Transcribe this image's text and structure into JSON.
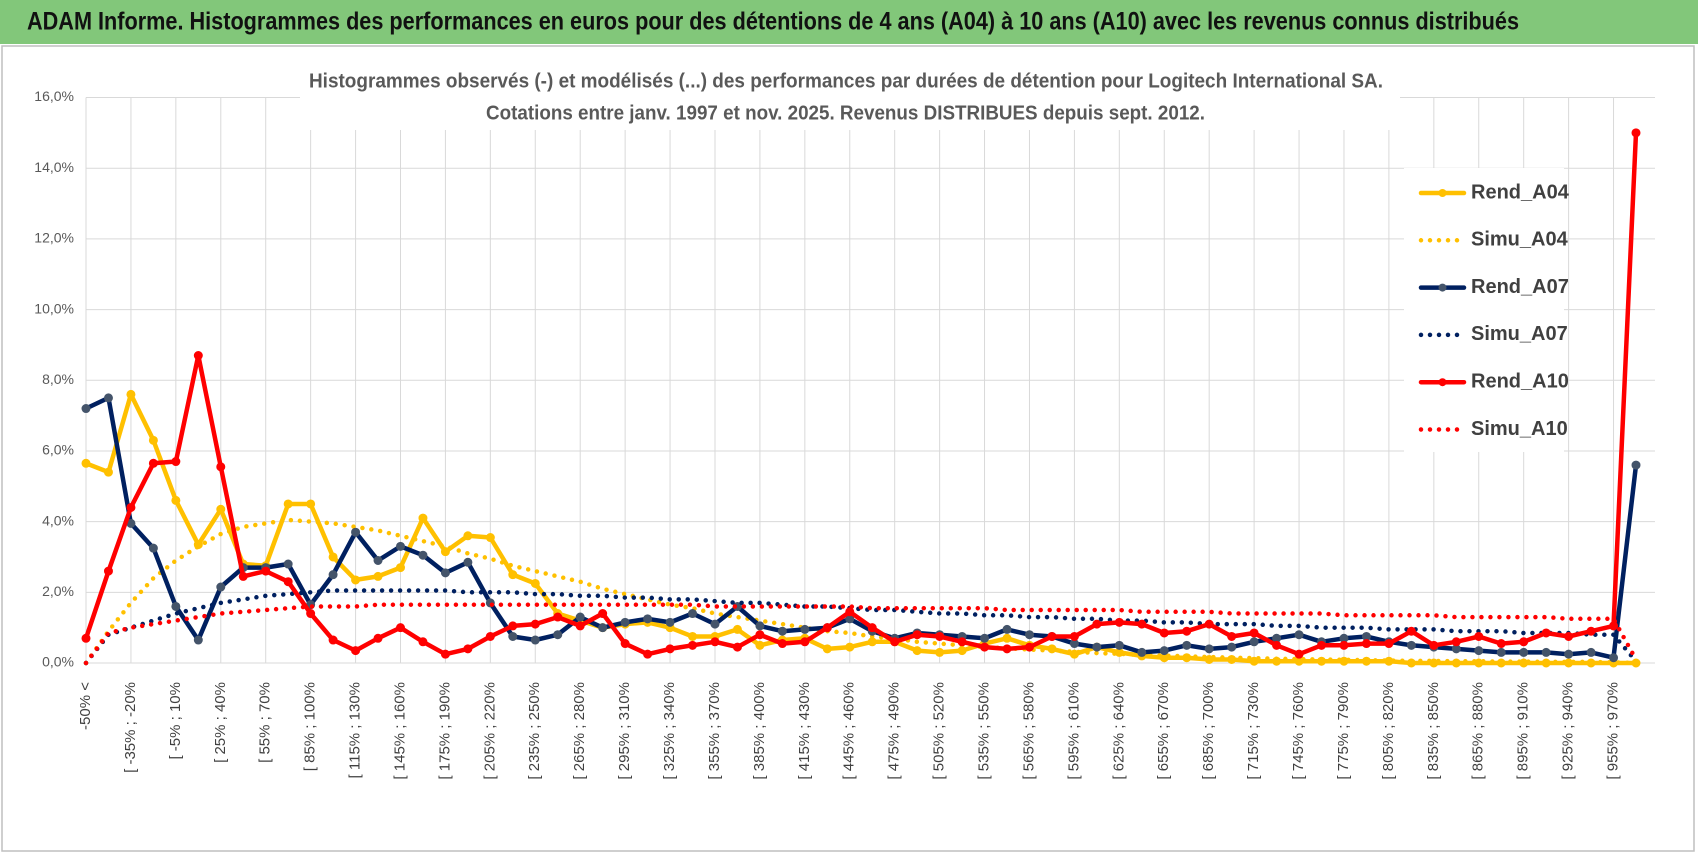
{
  "header": {
    "title": "ADAM Informe. Histogrammes des performances en euros pour des détentions de 4 ans (A04) à 10 ans (A10) avec les revenus connus distribués"
  },
  "chart_data": {
    "type": "line",
    "title": "Histogrammes observés (-) et modélisés (...) des performances par durées de détention pour Logitech International SA.",
    "subtitle": "Cotations entre janv. 1997 et nov. 2025. Revenus DISTRIBUES depuis sept. 2012.",
    "categories": [
      "-50% <",
      null,
      "[ -35% ; -20%",
      null,
      "[ -5% ; 10%",
      null,
      "[ 25% ; 40%",
      null,
      "[ 55% ; 70%",
      null,
      "[ 85% ; 100%",
      null,
      "[ 115% ; 130%",
      null,
      "[ 145% ; 160%",
      null,
      "[ 175% ; 190%",
      null,
      "[ 205% ; 220%",
      null,
      "[ 235% ; 250%",
      null,
      "[ 265% ; 280%",
      null,
      "[ 295% ; 310%",
      null,
      "[ 325% ; 340%",
      null,
      "[ 355% ; 370%",
      null,
      "[ 385% ; 400%",
      null,
      "[ 415% ; 430%",
      null,
      "[ 445% ; 460%",
      null,
      "[ 475% ; 490%",
      null,
      "[ 505% ; 520%",
      null,
      "[ 535% ; 550%",
      null,
      "[ 565% ; 580%",
      null,
      "[ 595% ; 610%",
      null,
      "[ 625% ; 640%",
      null,
      "[ 655% ; 670%",
      null,
      "[ 685% ; 700%",
      null,
      "[ 715% ; 730%",
      null,
      "[ 745% ; 760%",
      null,
      "[ 775% ; 790%",
      null,
      "[ 805% ; 820%",
      null,
      "[ 835% ; 850%",
      null,
      "[ 865% ; 880%",
      null,
      "[ 895% ; 910%",
      null,
      "[ 925% ; 940%",
      null,
      "[ 955% ; 970%",
      null
    ],
    "ylim": [
      0,
      16
    ],
    "yticks": [
      {
        "value": 0,
        "label": "0,0%"
      },
      {
        "value": 2,
        "label": "2,0%"
      },
      {
        "value": 4,
        "label": "4,0%"
      },
      {
        "value": 6,
        "label": "6,0%"
      },
      {
        "value": 8,
        "label": "8,0%"
      },
      {
        "value": 10,
        "label": "10,0%"
      },
      {
        "value": 12,
        "label": "12,0%"
      },
      {
        "value": 14,
        "label": "14,0%"
      },
      {
        "value": 16,
        "label": "16,0%"
      }
    ],
    "grid": true,
    "legend": "right",
    "series": [
      {
        "name": "Rend_A04",
        "color": "#ffc000",
        "line_style": "solid",
        "marker_color": "#ffc000",
        "values": [
          5.65,
          5.4,
          7.6,
          6.3,
          4.6,
          3.35,
          4.35,
          2.8,
          2.75,
          4.5,
          4.5,
          3.0,
          2.35,
          2.45,
          2.7,
          4.1,
          3.15,
          3.6,
          3.55,
          2.5,
          2.25,
          1.4,
          1.2,
          1.0,
          1.1,
          1.15,
          1.0,
          0.75,
          0.75,
          0.95,
          0.5,
          0.65,
          0.7,
          0.4,
          0.45,
          0.6,
          0.6,
          0.35,
          0.3,
          0.35,
          0.55,
          0.7,
          0.5,
          0.4,
          0.25,
          0.45,
          0.3,
          0.2,
          0.15,
          0.15,
          0.1,
          0.1,
          0.05,
          0.05,
          0.05,
          0.05,
          0.05,
          0.05,
          0.05,
          0,
          0,
          0,
          0,
          0,
          0,
          0,
          0,
          0,
          0,
          0
        ]
      },
      {
        "name": "Simu_A04",
        "color": "#ffc000",
        "line_style": "dotted",
        "values": [
          0,
          0.9,
          1.7,
          2.4,
          2.9,
          3.3,
          3.65,
          3.85,
          3.95,
          4.05,
          4.0,
          3.95,
          3.85,
          3.75,
          3.6,
          3.45,
          3.3,
          3.1,
          2.95,
          2.75,
          2.6,
          2.45,
          2.3,
          2.1,
          1.95,
          1.8,
          1.65,
          1.55,
          1.4,
          1.3,
          1.2,
          1.1,
          1.0,
          0.9,
          0.85,
          0.75,
          0.7,
          0.6,
          0.55,
          0.5,
          0.45,
          0.42,
          0.38,
          0.35,
          0.32,
          0.28,
          0.26,
          0.23,
          0.21,
          0.19,
          0.17,
          0.15,
          0.14,
          0.12,
          0.11,
          0.1,
          0.09,
          0.08,
          0.07,
          0.06,
          0.06,
          0.05,
          0.05,
          0.04,
          0.04,
          0.03,
          0.03,
          0.03,
          0.02,
          0
        ]
      },
      {
        "name": "Rend_A07",
        "color": "#002060",
        "line_style": "solid",
        "marker_color": "#44546a",
        "values": [
          7.2,
          7.5,
          3.95,
          3.25,
          1.6,
          0.65,
          2.15,
          2.7,
          2.7,
          2.8,
          1.65,
          2.5,
          3.7,
          2.9,
          3.3,
          3.05,
          2.55,
          2.85,
          1.7,
          0.75,
          0.65,
          0.8,
          1.3,
          1.0,
          1.15,
          1.25,
          1.15,
          1.4,
          1.1,
          1.6,
          1.05,
          0.9,
          0.95,
          1.0,
          1.25,
          0.9,
          0.7,
          0.85,
          0.8,
          0.75,
          0.7,
          0.95,
          0.8,
          0.75,
          0.55,
          0.45,
          0.5,
          0.3,
          0.35,
          0.5,
          0.4,
          0.45,
          0.6,
          0.7,
          0.8,
          0.6,
          0.7,
          0.75,
          0.6,
          0.5,
          0.45,
          0.4,
          0.35,
          0.3,
          0.3,
          0.3,
          0.25,
          0.3,
          0.15,
          5.6
        ]
      },
      {
        "name": "Simu_A07",
        "color": "#002060",
        "line_style": "dotted",
        "values": [
          0,
          0.8,
          1.0,
          1.2,
          1.4,
          1.55,
          1.7,
          1.8,
          1.9,
          1.95,
          2.0,
          2.05,
          2.05,
          2.05,
          2.05,
          2.05,
          2.05,
          2.0,
          2.0,
          2.0,
          1.95,
          1.95,
          1.9,
          1.9,
          1.85,
          1.85,
          1.8,
          1.8,
          1.75,
          1.7,
          1.7,
          1.65,
          1.6,
          1.6,
          1.55,
          1.5,
          1.5,
          1.45,
          1.4,
          1.4,
          1.35,
          1.35,
          1.3,
          1.3,
          1.25,
          1.25,
          1.2,
          1.2,
          1.15,
          1.15,
          1.1,
          1.1,
          1.1,
          1.05,
          1.05,
          1.0,
          1.0,
          1.0,
          0.95,
          0.95,
          0.95,
          0.9,
          0.9,
          0.9,
          0.85,
          0.85,
          0.85,
          0.8,
          0.8,
          0.05
        ]
      },
      {
        "name": "Rend_A10",
        "color": "#ff0000",
        "line_style": "solid",
        "marker_color": "#ff0000",
        "values": [
          0.7,
          2.6,
          4.4,
          5.65,
          5.7,
          8.7,
          5.55,
          2.45,
          2.6,
          2.3,
          1.4,
          0.65,
          0.35,
          0.7,
          1.0,
          0.6,
          0.25,
          0.4,
          0.75,
          1.05,
          1.1,
          1.3,
          1.05,
          1.4,
          0.55,
          0.25,
          0.4,
          0.5,
          0.6,
          0.45,
          0.8,
          0.55,
          0.6,
          1.0,
          1.45,
          1.0,
          0.6,
          0.8,
          0.75,
          0.6,
          0.45,
          0.4,
          0.45,
          0.75,
          0.75,
          1.1,
          1.15,
          1.1,
          0.85,
          0.9,
          1.1,
          0.75,
          0.85,
          0.5,
          0.25,
          0.5,
          0.5,
          0.55,
          0.55,
          0.9,
          0.5,
          0.6,
          0.75,
          0.55,
          0.6,
          0.85,
          0.75,
          0.9,
          1.05,
          15.0
        ]
      },
      {
        "name": "Simu_A10",
        "color": "#ff0000",
        "line_style": "dotted",
        "values": [
          0,
          0.85,
          1.0,
          1.1,
          1.2,
          1.3,
          1.4,
          1.45,
          1.5,
          1.55,
          1.6,
          1.6,
          1.6,
          1.65,
          1.65,
          1.65,
          1.65,
          1.65,
          1.65,
          1.65,
          1.65,
          1.65,
          1.65,
          1.65,
          1.65,
          1.65,
          1.65,
          1.65,
          1.6,
          1.6,
          1.6,
          1.6,
          1.6,
          1.6,
          1.6,
          1.55,
          1.55,
          1.55,
          1.55,
          1.55,
          1.55,
          1.5,
          1.5,
          1.5,
          1.5,
          1.5,
          1.5,
          1.45,
          1.45,
          1.45,
          1.45,
          1.4,
          1.4,
          1.4,
          1.4,
          1.4,
          1.35,
          1.35,
          1.35,
          1.35,
          1.35,
          1.3,
          1.3,
          1.3,
          1.3,
          1.3,
          1.25,
          1.25,
          1.25,
          0.1
        ]
      }
    ]
  }
}
